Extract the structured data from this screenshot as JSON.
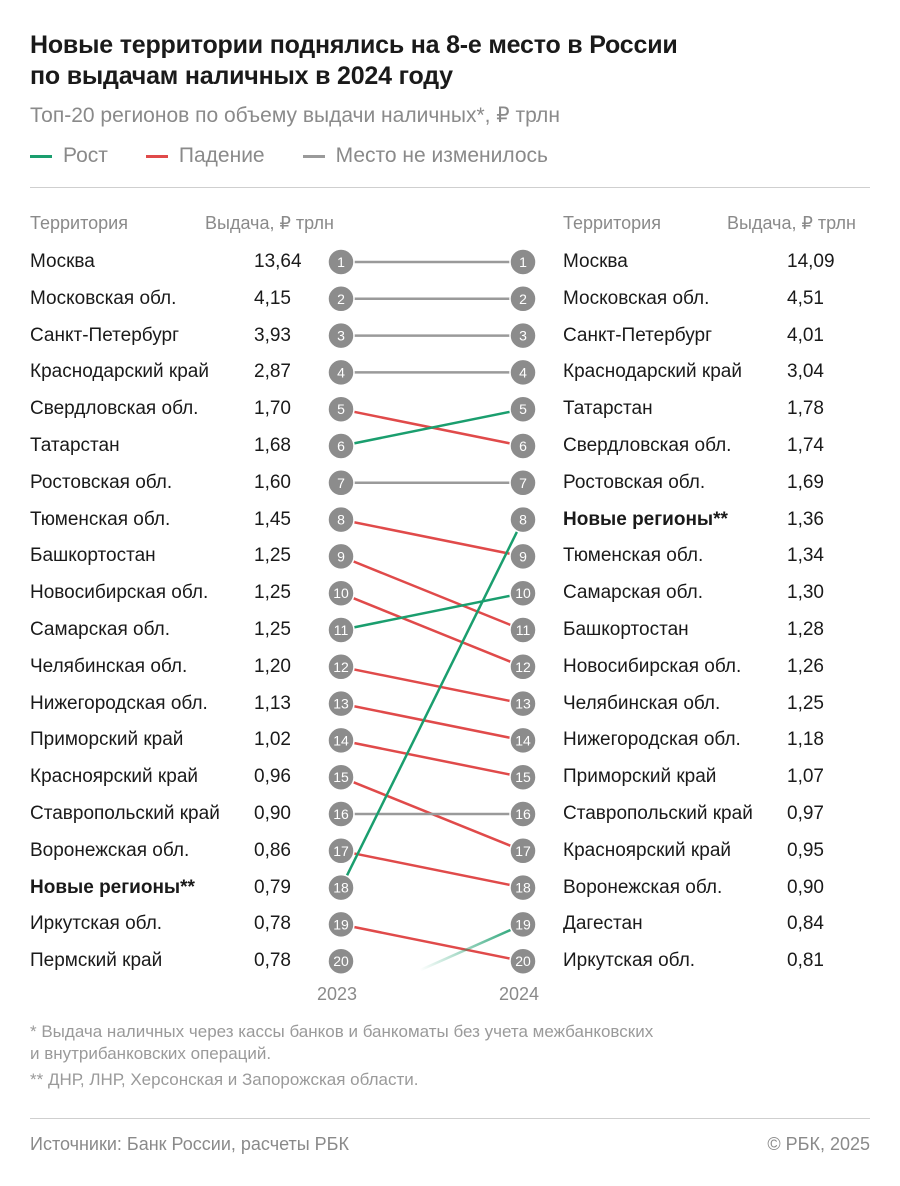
{
  "title": "Новые территории поднялись на 8-е место в России\nпо выдачам наличных в 2024 году",
  "subtitle": "Топ-20 регионов по объему выдачи наличных*, ₽ трлн",
  "legend": [
    {
      "label": "Рост",
      "color": "#1a9e6e"
    },
    {
      "label": "Падение",
      "color": "#e04a4a"
    },
    {
      "label": "Место не изменилось",
      "color": "#9a9a9a"
    }
  ],
  "headers": {
    "territory": "Территория",
    "value": "Выдача, ₽ трлн"
  },
  "years": [
    "2023",
    "2024"
  ],
  "colors": {
    "up": "#1a9e6e",
    "down": "#e04a4a",
    "same": "#9a9a9a",
    "badge": "#8c8c8c",
    "text": "#1a1a1a",
    "muted": "#8a8a8a"
  },
  "chart_data": {
    "type": "table",
    "left": [
      {
        "rank": 1,
        "region": "Москва",
        "value": "13,64"
      },
      {
        "rank": 2,
        "region": "Московская обл.",
        "value": "4,15"
      },
      {
        "rank": 3,
        "region": "Санкт-Петербург",
        "value": "3,93"
      },
      {
        "rank": 4,
        "region": "Краснодарский край",
        "value": "2,87"
      },
      {
        "rank": 5,
        "region": "Свердловская обл.",
        "value": "1,70"
      },
      {
        "rank": 6,
        "region": "Татарстан",
        "value": "1,68"
      },
      {
        "rank": 7,
        "region": "Ростовская обл.",
        "value": "1,60"
      },
      {
        "rank": 8,
        "region": "Тюменская обл.",
        "value": "1,45"
      },
      {
        "rank": 9,
        "region": "Башкортостан",
        "value": "1,25"
      },
      {
        "rank": 10,
        "region": "Новосибирская обл.",
        "value": "1,25"
      },
      {
        "rank": 11,
        "region": "Самарская обл.",
        "value": "1,25"
      },
      {
        "rank": 12,
        "region": "Челябинская обл.",
        "value": "1,20"
      },
      {
        "rank": 13,
        "region": "Нижегородская обл.",
        "value": "1,13"
      },
      {
        "rank": 14,
        "region": "Приморский край",
        "value": "1,02"
      },
      {
        "rank": 15,
        "region": "Красноярский край",
        "value": "0,96"
      },
      {
        "rank": 16,
        "region": "Ставропольский край",
        "value": "0,90"
      },
      {
        "rank": 17,
        "region": "Воронежская обл.",
        "value": "0,86"
      },
      {
        "rank": 18,
        "region": "Новые регионы**",
        "value": "0,79",
        "bold": true
      },
      {
        "rank": 19,
        "region": "Иркутская обл.",
        "value": "0,78"
      },
      {
        "rank": 20,
        "region": "Пермский край",
        "value": "0,78"
      }
    ],
    "right": [
      {
        "rank": 1,
        "region": "Москва",
        "value": "14,09"
      },
      {
        "rank": 2,
        "region": "Московская обл.",
        "value": "4,51"
      },
      {
        "rank": 3,
        "region": "Санкт-Петербург",
        "value": "4,01"
      },
      {
        "rank": 4,
        "region": "Краснодарский край",
        "value": "3,04"
      },
      {
        "rank": 5,
        "region": "Татарстан",
        "value": "1,78"
      },
      {
        "rank": 6,
        "region": "Свердловская обл.",
        "value": "1,74"
      },
      {
        "rank": 7,
        "region": "Ростовская обл.",
        "value": "1,69"
      },
      {
        "rank": 8,
        "region": "Новые регионы**",
        "value": "1,36",
        "bold": true
      },
      {
        "rank": 9,
        "region": "Тюменская обл.",
        "value": "1,34"
      },
      {
        "rank": 10,
        "region": "Самарская обл.",
        "value": "1,30"
      },
      {
        "rank": 11,
        "region": "Башкортостан",
        "value": "1,28"
      },
      {
        "rank": 12,
        "region": "Новосибирская обл.",
        "value": "1,26"
      },
      {
        "rank": 13,
        "region": "Челябинская обл.",
        "value": "1,25"
      },
      {
        "rank": 14,
        "region": "Нижегородская обл.",
        "value": "1,18"
      },
      {
        "rank": 15,
        "region": "Приморский край",
        "value": "1,07"
      },
      {
        "rank": 16,
        "region": "Ставропольский край",
        "value": "0,97"
      },
      {
        "rank": 17,
        "region": "Красноярский край",
        "value": "0,95"
      },
      {
        "rank": 18,
        "region": "Воронежская обл.",
        "value": "0,90"
      },
      {
        "rank": 19,
        "region": "Дагестан",
        "value": "0,84"
      },
      {
        "rank": 20,
        "region": "Иркутская обл.",
        "value": "0,81"
      }
    ],
    "links": [
      {
        "from": 1,
        "to": 1,
        "trend": "same"
      },
      {
        "from": 2,
        "to": 2,
        "trend": "same"
      },
      {
        "from": 3,
        "to": 3,
        "trend": "same"
      },
      {
        "from": 4,
        "to": 4,
        "trend": "same"
      },
      {
        "from": 5,
        "to": 6,
        "trend": "down"
      },
      {
        "from": 6,
        "to": 5,
        "trend": "up"
      },
      {
        "from": 7,
        "to": 7,
        "trend": "same"
      },
      {
        "from": 8,
        "to": 9,
        "trend": "down"
      },
      {
        "from": 9,
        "to": 11,
        "trend": "down"
      },
      {
        "from": 10,
        "to": 12,
        "trend": "down"
      },
      {
        "from": 11,
        "to": 10,
        "trend": "up"
      },
      {
        "from": 12,
        "to": 13,
        "trend": "down"
      },
      {
        "from": 13,
        "to": 14,
        "trend": "down"
      },
      {
        "from": 14,
        "to": 15,
        "trend": "down"
      },
      {
        "from": 15,
        "to": 17,
        "trend": "down"
      },
      {
        "from": 16,
        "to": 16,
        "trend": "same"
      },
      {
        "from": 17,
        "to": 18,
        "trend": "down"
      },
      {
        "from": 18,
        "to": 8,
        "trend": "up"
      },
      {
        "from": 19,
        "to": 20,
        "trend": "down"
      },
      {
        "from": null,
        "to": 19,
        "trend": "up"
      }
    ]
  },
  "footnotes": [
    "* Выдача наличных через кассы банков и банкоматы без учета межбанковских\nи внутрибанковских операций.",
    "** ДНР, ЛНР, Херсонская и Запорожская области."
  ],
  "source": "Источники: Банк России, расчеты РБК",
  "copyright": "© РБК, 2025"
}
